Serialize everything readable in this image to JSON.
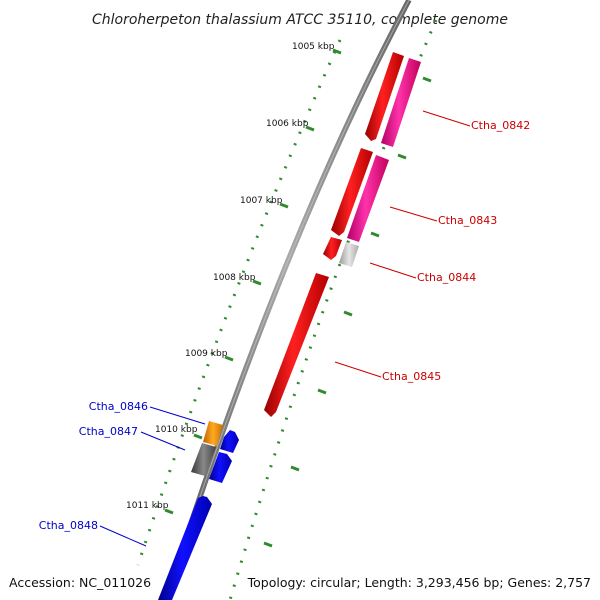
{
  "title": "Chloroherpeton thalassium ATCC 35110, complete genome",
  "footer": {
    "accession": "Accession: NC_011026",
    "summary": "Topology: circular; Length: 3,293,456 bp; Genes: 2,757"
  },
  "colors": {
    "backbone": "#8c8c8c",
    "tick": "#2e8b2e",
    "forward_label": "#cc0000",
    "reverse_label": "#0000cc",
    "forward_gene": "#ff0000",
    "forward_cds": "#ff2299",
    "pseudo": "#c8c8c8",
    "reverse_gene": "#0000ff",
    "reverse_orange": "#ff9900",
    "reverse_gray": "#666666"
  },
  "scale_labels": [
    "1005 kbp",
    "1006 kbp",
    "1007 kbp",
    "1008 kbp",
    "1009 kbp",
    "1010 kbp",
    "1011 kbp"
  ],
  "gene_labels": {
    "forward": [
      "Ctha_0842",
      "Ctha_0843",
      "Ctha_0844",
      "Ctha_0845"
    ],
    "reverse": [
      "Ctha_0846",
      "Ctha_0847",
      "Ctha_0848"
    ]
  }
}
